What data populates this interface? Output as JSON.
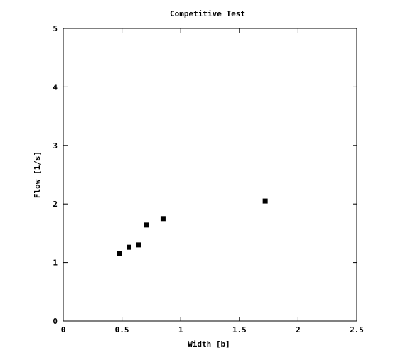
{
  "chart_data": {
    "type": "scatter",
    "title": "Competitive Test",
    "xlabel": "Width [b]",
    "ylabel": "Flow [1/s]",
    "xlim": [
      0,
      2.5
    ],
    "ylim": [
      0,
      5
    ],
    "xticks": [
      0,
      0.5,
      1,
      1.5,
      2,
      2.5
    ],
    "xtick_labels": [
      "0",
      "0.5",
      "1",
      "1.5",
      "2",
      "2.5"
    ],
    "yticks": [
      0,
      1,
      2,
      3,
      4,
      5
    ],
    "ytick_labels": [
      "0",
      "1",
      "2",
      "3",
      "4",
      "5"
    ],
    "grid": false,
    "marker": "square",
    "marker_color": "#000000",
    "points": [
      {
        "x": 0.48,
        "y": 1.15
      },
      {
        "x": 0.56,
        "y": 1.26
      },
      {
        "x": 0.64,
        "y": 1.3
      },
      {
        "x": 0.71,
        "y": 1.64
      },
      {
        "x": 0.85,
        "y": 1.75
      },
      {
        "x": 1.72,
        "y": 2.05
      }
    ]
  }
}
